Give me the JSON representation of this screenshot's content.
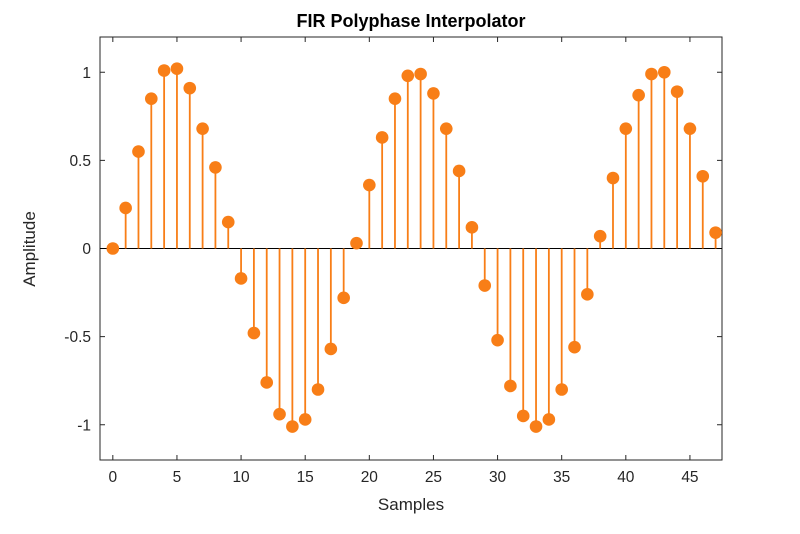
{
  "chart_data": {
    "type": "stem",
    "title": "FIR Polyphase Interpolator",
    "xlabel": "Samples",
    "ylabel": "Amplitude",
    "xlim": [
      -1,
      47.5
    ],
    "ylim": [
      -1.2,
      1.2
    ],
    "xticks": [
      0,
      5,
      10,
      15,
      20,
      25,
      30,
      35,
      40,
      45
    ],
    "yticks": [
      -1,
      -0.5,
      0,
      0.5,
      1
    ],
    "ytick_labels": [
      "-1",
      "-0.5",
      "0",
      "0.5",
      "1"
    ],
    "grid": false,
    "legend": "none",
    "marker_color": "#F87E17",
    "axis_color": "#262626",
    "baseline_color": "#000000",
    "baseline": 0,
    "x": [
      0,
      1,
      2,
      3,
      4,
      5,
      6,
      7,
      8,
      9,
      10,
      11,
      12,
      13,
      14,
      15,
      16,
      17,
      18,
      19,
      20,
      21,
      22,
      23,
      24,
      25,
      26,
      27,
      28,
      29,
      30,
      31,
      32,
      33,
      34,
      35,
      36,
      37,
      38,
      39,
      40,
      41,
      42,
      43,
      44,
      45,
      46,
      47
    ],
    "values": [
      0.0,
      0.23,
      0.55,
      0.85,
      1.01,
      1.02,
      0.91,
      0.68,
      0.46,
      0.15,
      -0.17,
      -0.48,
      -0.76,
      -0.94,
      -1.01,
      -0.97,
      -0.8,
      -0.57,
      -0.28,
      0.03,
      0.36,
      0.63,
      0.85,
      0.98,
      0.99,
      0.88,
      0.68,
      0.44,
      0.12,
      -0.21,
      -0.52,
      -0.78,
      -0.95,
      -1.01,
      -0.97,
      -0.8,
      -0.56,
      -0.26,
      0.07,
      0.4,
      0.68,
      0.87,
      0.99,
      1.0,
      0.89,
      0.68,
      0.41,
      0.09
    ]
  }
}
